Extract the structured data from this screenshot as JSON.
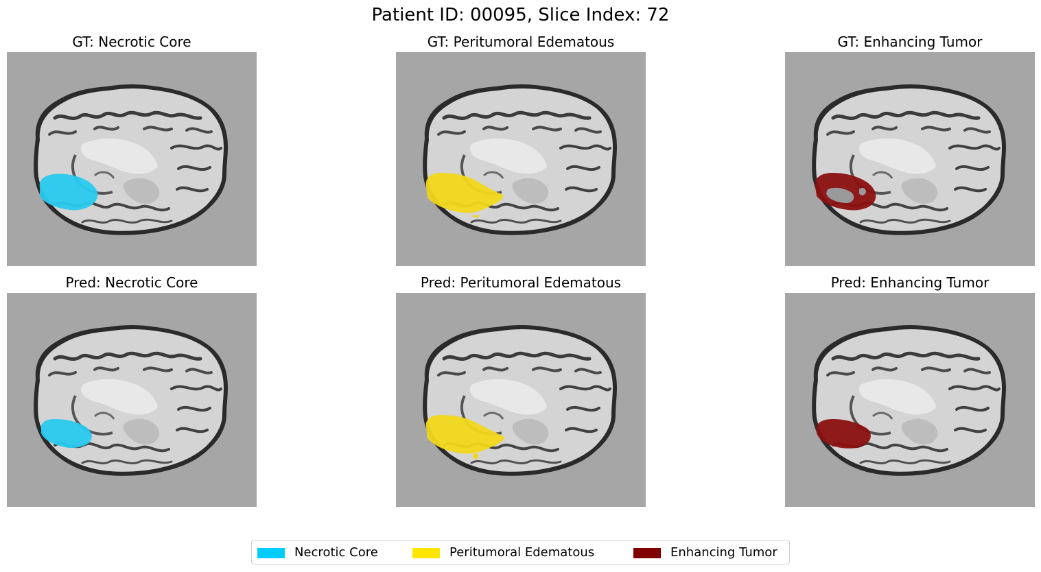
{
  "figure": {
    "title": "Patient ID: 00095, Slice Index: 72"
  },
  "panels": [
    {
      "title": "GT: Necrotic Core",
      "region": "necrotic-core",
      "overlay_color": "#29c9ee"
    },
    {
      "title": "GT: Peritumoral Edematous",
      "region": "peritumoral-edematous",
      "overlay_color": "#f2d81b"
    },
    {
      "title": "GT: Enhancing Tumor",
      "region": "enhancing-tumor",
      "overlay_color": "#8b1010"
    },
    {
      "title": "Pred: Necrotic Core",
      "region": "necrotic-core",
      "overlay_color": "#29c9ee"
    },
    {
      "title": "Pred: Peritumoral Edematous",
      "region": "peritumoral-edematous",
      "overlay_color": "#f2d81b"
    },
    {
      "title": "Pred: Enhancing Tumor",
      "region": "enhancing-tumor",
      "overlay_color": "#8b1010"
    }
  ],
  "legend": {
    "items": [
      {
        "label": "Necrotic Core",
        "color": "#00ccff"
      },
      {
        "label": "Peritumoral Edematous",
        "color": "#ffe600"
      },
      {
        "label": "Enhancing Tumor",
        "color": "#800000"
      }
    ]
  },
  "colors": {
    "background": "#a6a6a6",
    "brain": "#d6d6d6"
  }
}
